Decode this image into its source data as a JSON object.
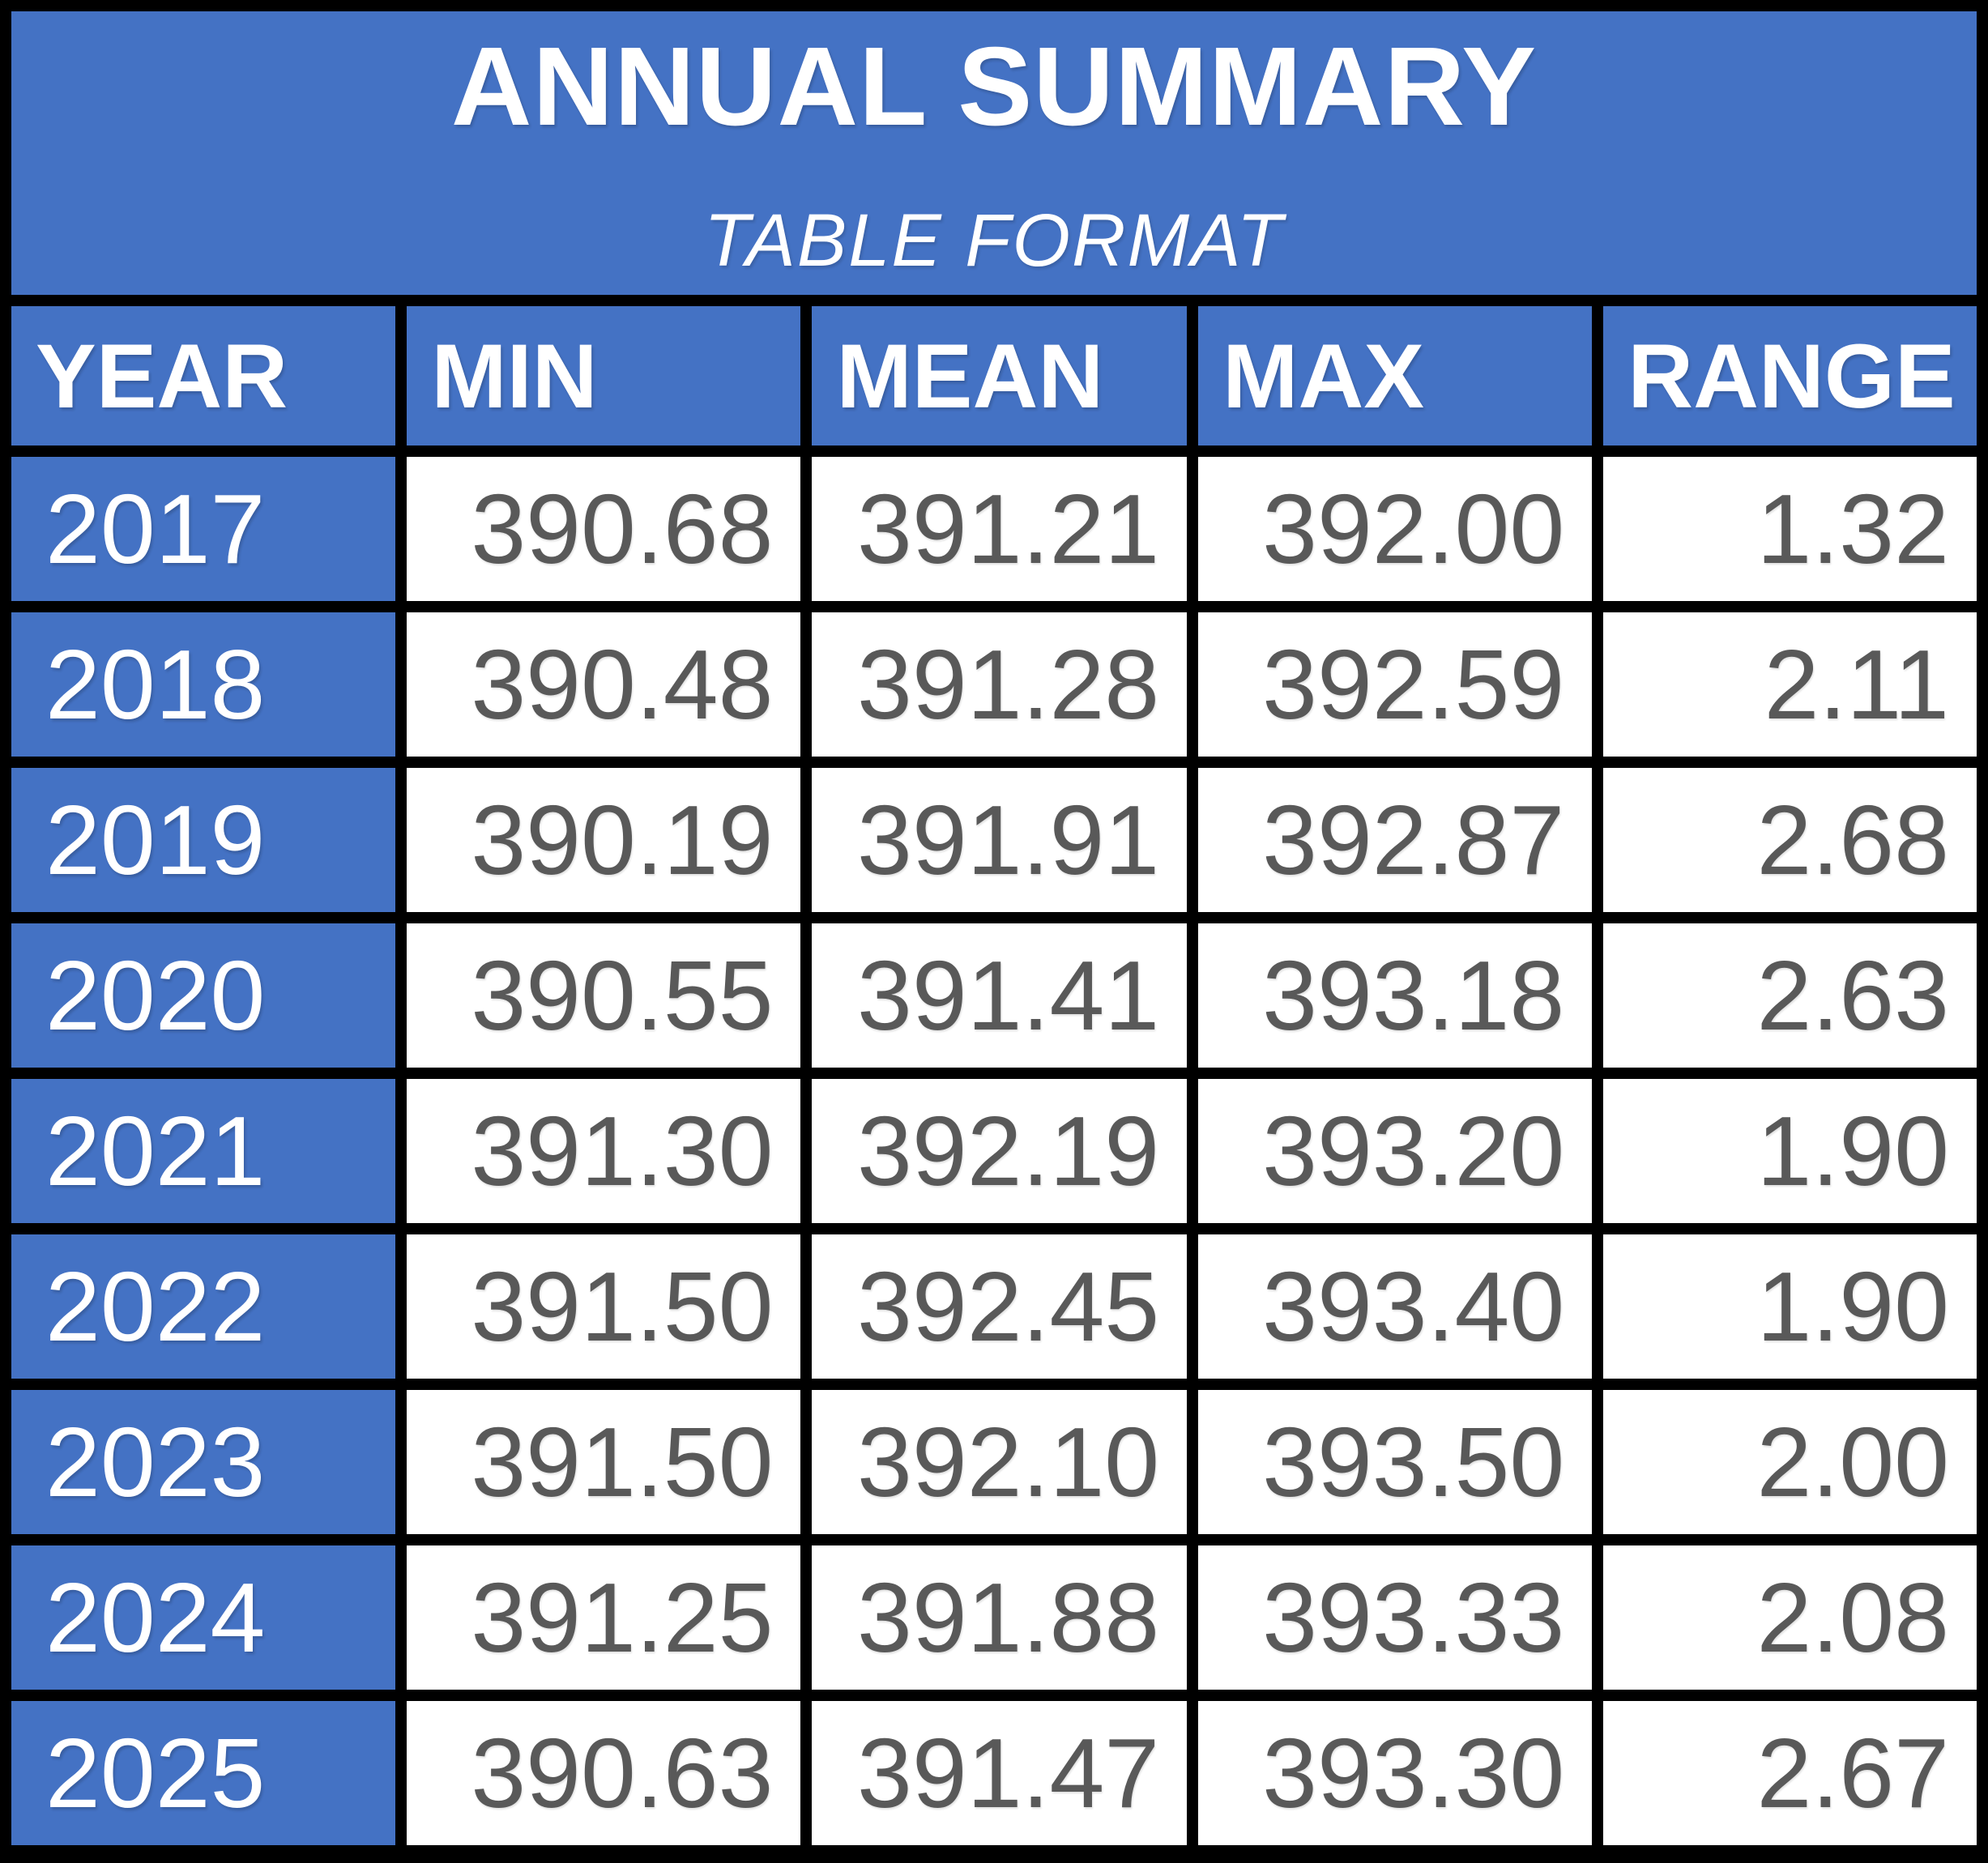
{
  "title": {
    "main": "ANNUAL SUMMARY",
    "subtitle": "TABLE FORMAT"
  },
  "colors": {
    "accent_blue": "#4472C4",
    "value_text_gray": "#595959",
    "grid_border_black": "#000000",
    "cell_background_white": "#FFFFFF",
    "header_text_white": "#FFFFFF"
  },
  "chart_data": {
    "type": "table",
    "title": "ANNUAL SUMMARY",
    "subtitle": "TABLE FORMAT",
    "columns": [
      "YEAR",
      "MIN",
      "MEAN",
      "MAX",
      "RANGE"
    ],
    "rows": [
      {
        "year": "2017",
        "min": "390.68",
        "mean": "391.21",
        "max": "392.00",
        "range": "1.32"
      },
      {
        "year": "2018",
        "min": "390.48",
        "mean": "391.28",
        "max": "392.59",
        "range": "2.11"
      },
      {
        "year": "2019",
        "min": "390.19",
        "mean": "391.91",
        "max": "392.87",
        "range": "2.68"
      },
      {
        "year": "2020",
        "min": "390.55",
        "mean": "391.41",
        "max": "393.18",
        "range": "2.63"
      },
      {
        "year": "2021",
        "min": "391.30",
        "mean": "392.19",
        "max": "393.20",
        "range": "1.90"
      },
      {
        "year": "2022",
        "min": "391.50",
        "mean": "392.45",
        "max": "393.40",
        "range": "1.90"
      },
      {
        "year": "2023",
        "min": "391.50",
        "mean": "392.10",
        "max": "393.50",
        "range": "2.00"
      },
      {
        "year": "2024",
        "min": "391.25",
        "mean": "391.88",
        "max": "393.33",
        "range": "2.08"
      },
      {
        "year": "2025",
        "min": "390.63",
        "mean": "391.47",
        "max": "393.30",
        "range": "2.67"
      }
    ]
  }
}
